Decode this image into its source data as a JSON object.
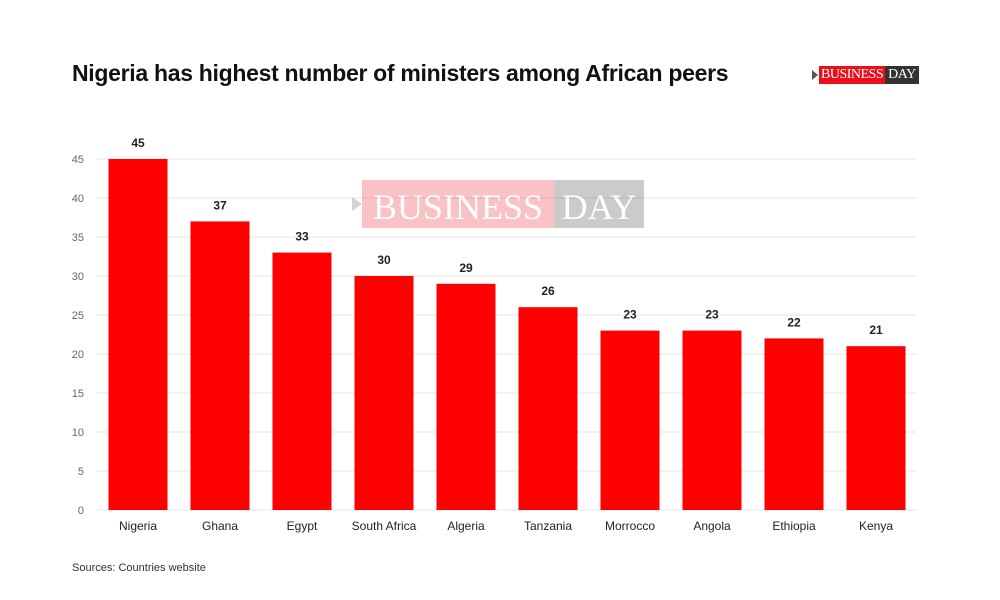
{
  "header": {
    "title": "Nigeria has highest number of ministers among African peers",
    "logo_red": "BUSINESS",
    "logo_dark": "DAY"
  },
  "footer": {
    "source": "Sources: Countries website"
  },
  "watermark": {
    "red": "BUSINESS",
    "dark": "DAY"
  },
  "colors": {
    "bar": "#ff0000",
    "grid": "#e6e6e6",
    "text": "#222222"
  },
  "chart_data": {
    "type": "bar",
    "title": "Nigeria has highest number of ministers among African peers",
    "categories": [
      "Nigeria",
      "Ghana",
      "Egypt",
      "South Africa",
      "Algeria",
      "Tanzania",
      "Morrocco",
      "Angola",
      "Ethiopia",
      "Kenya"
    ],
    "values": [
      45,
      37,
      33,
      30,
      29,
      26,
      23,
      23,
      22,
      21
    ],
    "yticks": [
      0,
      5,
      10,
      15,
      20,
      25,
      30,
      35,
      40,
      45
    ],
    "ylim": [
      0,
      45
    ],
    "xlabel": "",
    "ylabel": "",
    "grid": true,
    "data_labels": true
  }
}
